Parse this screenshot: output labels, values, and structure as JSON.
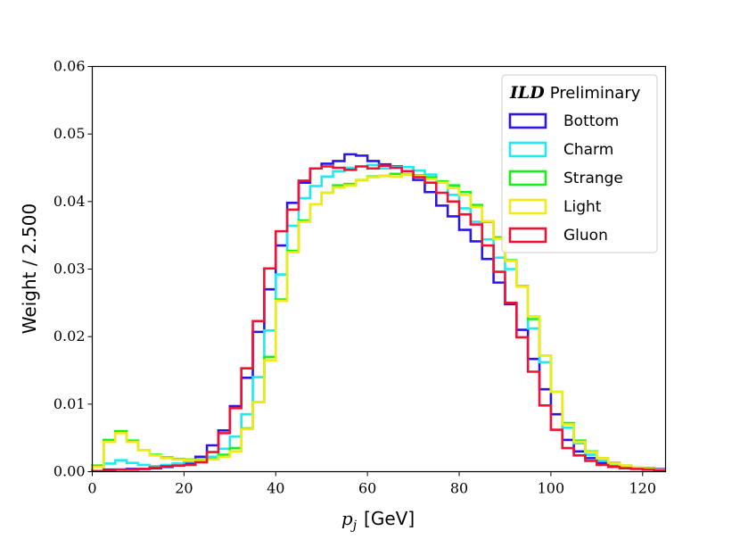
{
  "chart_data": {
    "type": "step-histogram",
    "title": "",
    "xlabel_math": "p",
    "xlabel_sub": "j",
    "xlabel_unit": "[GeV]",
    "ylabel": "Weight / 2.500",
    "xlim": [
      0,
      125
    ],
    "ylim": [
      0,
      0.06
    ],
    "bin_width": 2.5,
    "x_ticks": [
      0,
      20,
      40,
      60,
      80,
      100,
      120
    ],
    "x_tick_labels": [
      "0",
      "20",
      "40",
      "60",
      "80",
      "100",
      "120"
    ],
    "y_ticks": [
      0,
      0.01,
      0.02,
      0.03,
      0.04,
      0.05,
      0.06
    ],
    "y_tick_labels": [
      "0.00",
      "0.01",
      "0.02",
      "0.03",
      "0.04",
      "0.05",
      "0.06"
    ],
    "legend_title_bold": "ILD",
    "legend_title_rest": "Preliminary",
    "legend_position": "top-right",
    "series": [
      {
        "name": "Bottom",
        "color": "#2b16e6",
        "values": [
          0.0001,
          0.0003,
          0.0003,
          0.0004,
          0.0004,
          0.0005,
          0.0007,
          0.0009,
          0.0013,
          0.0022,
          0.0039,
          0.0061,
          0.0097,
          0.0139,
          0.0207,
          0.027,
          0.0335,
          0.0398,
          0.0428,
          0.0449,
          0.0456,
          0.046,
          0.047,
          0.0468,
          0.046,
          0.0455,
          0.0452,
          0.044,
          0.0432,
          0.0414,
          0.0394,
          0.0378,
          0.0358,
          0.0341,
          0.0315,
          0.028,
          0.0248,
          0.021,
          0.0167,
          0.0122,
          0.0085,
          0.0047,
          0.003,
          0.002,
          0.0013,
          0.001,
          0.0008,
          0.0006,
          0.0005,
          0.0004
        ]
      },
      {
        "name": "Charm",
        "color": "#22e8f2",
        "values": [
          0.0008,
          0.0012,
          0.0017,
          0.0013,
          0.001,
          0.0008,
          0.001,
          0.0012,
          0.0015,
          0.0018,
          0.0022,
          0.0034,
          0.0052,
          0.0085,
          0.014,
          0.0209,
          0.0292,
          0.0364,
          0.0405,
          0.0423,
          0.0437,
          0.0445,
          0.045,
          0.0452,
          0.0454,
          0.0449,
          0.0451,
          0.0451,
          0.0446,
          0.044,
          0.0429,
          0.041,
          0.039,
          0.037,
          0.0344,
          0.0317,
          0.03,
          0.0275,
          0.0212,
          0.0162,
          0.0118,
          0.0065,
          0.0042,
          0.0025,
          0.0016,
          0.0011,
          0.0008,
          0.0006,
          0.0005,
          0.0003
        ]
      },
      {
        "name": "Strange",
        "color": "#18f01e",
        "values": [
          0.0009,
          0.0047,
          0.006,
          0.0046,
          0.0032,
          0.0025,
          0.0021,
          0.0019,
          0.0018,
          0.0018,
          0.0019,
          0.0025,
          0.0035,
          0.0064,
          0.0103,
          0.017,
          0.0255,
          0.0327,
          0.0372,
          0.0396,
          0.0413,
          0.0424,
          0.0426,
          0.0432,
          0.0437,
          0.0438,
          0.0441,
          0.044,
          0.0439,
          0.0436,
          0.043,
          0.0424,
          0.0414,
          0.0395,
          0.037,
          0.0347,
          0.0313,
          0.0274,
          0.0226,
          0.0172,
          0.0118,
          0.0072,
          0.0046,
          0.003,
          0.002,
          0.0013,
          0.0009,
          0.0006,
          0.0005,
          0.0003
        ]
      },
      {
        "name": "Light",
        "color": "#f2ea12",
        "values": [
          0.0007,
          0.0044,
          0.0057,
          0.0044,
          0.0032,
          0.0024,
          0.002,
          0.0018,
          0.0017,
          0.0017,
          0.0018,
          0.0022,
          0.003,
          0.0063,
          0.0103,
          0.0165,
          0.0253,
          0.0325,
          0.037,
          0.0396,
          0.0413,
          0.0421,
          0.0424,
          0.0432,
          0.0436,
          0.0438,
          0.0437,
          0.044,
          0.0438,
          0.0433,
          0.0428,
          0.042,
          0.041,
          0.0392,
          0.0371,
          0.0345,
          0.0312,
          0.0274,
          0.023,
          0.0172,
          0.0118,
          0.007,
          0.0044,
          0.0029,
          0.002,
          0.0012,
          0.0009,
          0.0006,
          0.0004,
          0.0003
        ]
      },
      {
        "name": "Gluon",
        "color": "#f01232",
        "values": [
          0.0001,
          0.0002,
          0.0003,
          0.0003,
          0.0004,
          0.0006,
          0.0008,
          0.0009,
          0.001,
          0.0014,
          0.0029,
          0.0057,
          0.0094,
          0.0153,
          0.0223,
          0.0301,
          0.0356,
          0.0388,
          0.0431,
          0.0449,
          0.0452,
          0.045,
          0.0447,
          0.0452,
          0.0449,
          0.0453,
          0.045,
          0.0445,
          0.0436,
          0.0428,
          0.0413,
          0.04,
          0.0381,
          0.0366,
          0.0335,
          0.0296,
          0.025,
          0.0199,
          0.0148,
          0.0098,
          0.0062,
          0.0035,
          0.0024,
          0.0016,
          0.001,
          0.0007,
          0.0005,
          0.0004,
          0.0003,
          0.0002
        ]
      }
    ]
  }
}
